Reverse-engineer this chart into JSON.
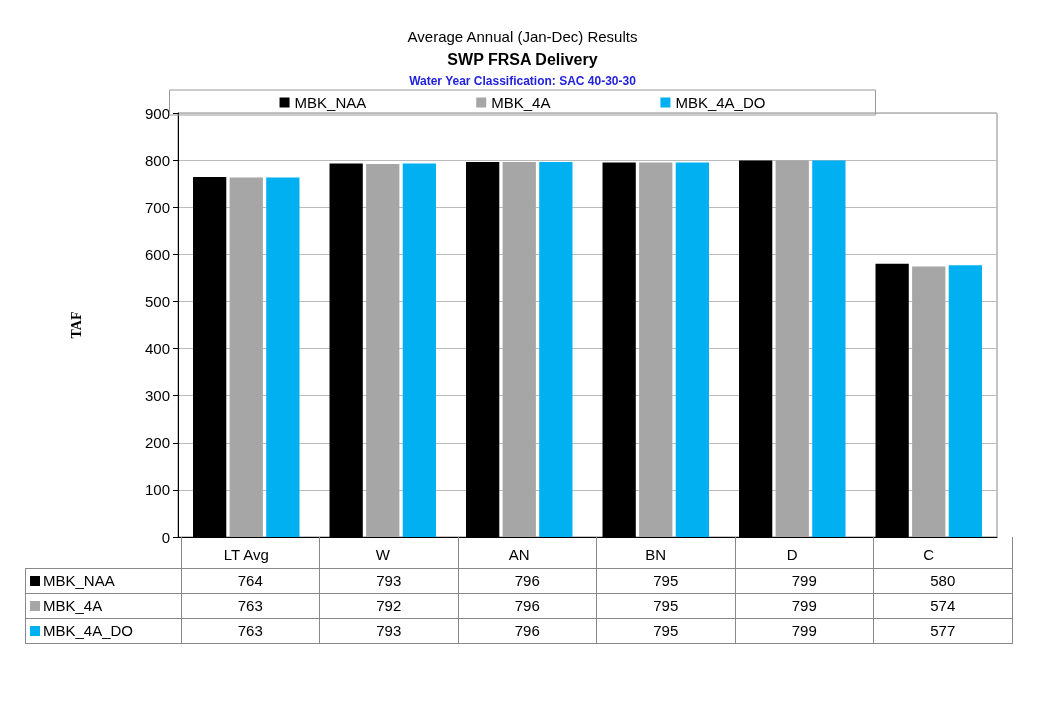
{
  "chart_data": {
    "type": "bar",
    "title": "Average Annual (Jan-Dec) Results",
    "subtitle": "SWP FRSA Delivery",
    "annotations": [
      "Water Year Classification: SAC 40-30-30"
    ],
    "ylabel": "TAF",
    "categories": [
      "LT Avg",
      "W",
      "AN",
      "BN",
      "D",
      "C"
    ],
    "series": [
      {
        "name": "MBK_NAA",
        "color": "#000000",
        "values": [
          764,
          793,
          796,
          795,
          799,
          580
        ]
      },
      {
        "name": "MBK_4A",
        "color": "#a6a6a6",
        "values": [
          763,
          792,
          796,
          795,
          799,
          574
        ]
      },
      {
        "name": "MBK_4A_DO",
        "color": "#00b0f0",
        "values": [
          763,
          793,
          796,
          795,
          799,
          577
        ]
      }
    ],
    "ylim": [
      0,
      900
    ],
    "yticks": [
      0,
      100,
      200,
      300,
      400,
      500,
      600,
      700,
      800,
      900
    ],
    "grid": "y",
    "legend": "top",
    "data_labels": true
  }
}
